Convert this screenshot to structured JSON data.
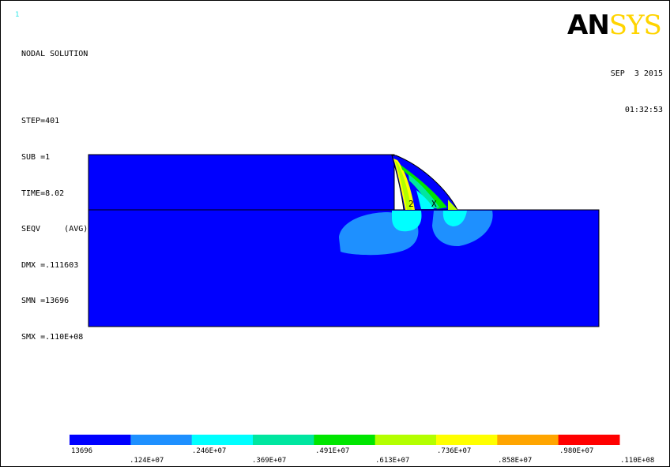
{
  "window_number": "1",
  "result_info": {
    "title": "NODAL SOLUTION",
    "step": "STEP=401",
    "sub": "SUB =1",
    "time": "TIME=8.02",
    "item": "SEQV     (AVG)",
    "dmx": "DMX =.111603",
    "smn": "SMN =13696",
    "smx": "SMX =.110E+08"
  },
  "date": "SEP  3 2015",
  "clock": "01:32:53",
  "logo": {
    "main": "AN",
    "tail": "SYS"
  },
  "markers": {
    "min": "2",
    "max": "X"
  },
  "legend": {
    "colors": [
      "#0000ff",
      "#1e90ff",
      "#00ffff",
      "#00e6a0",
      "#00e600",
      "#b4ff00",
      "#ffff00",
      "#ffa500",
      "#ff0000"
    ],
    "labels_upper": [
      "13696",
      ".246E+07",
      ".491E+07",
      ".736E+07",
      ".980E+07"
    ],
    "labels_lower": [
      ".124E+07",
      ".369E+07",
      ".613E+07",
      ".858E+07",
      ".110E+08"
    ]
  },
  "colors": {
    "background": "#ffffff",
    "model_base": "#0000ff"
  }
}
